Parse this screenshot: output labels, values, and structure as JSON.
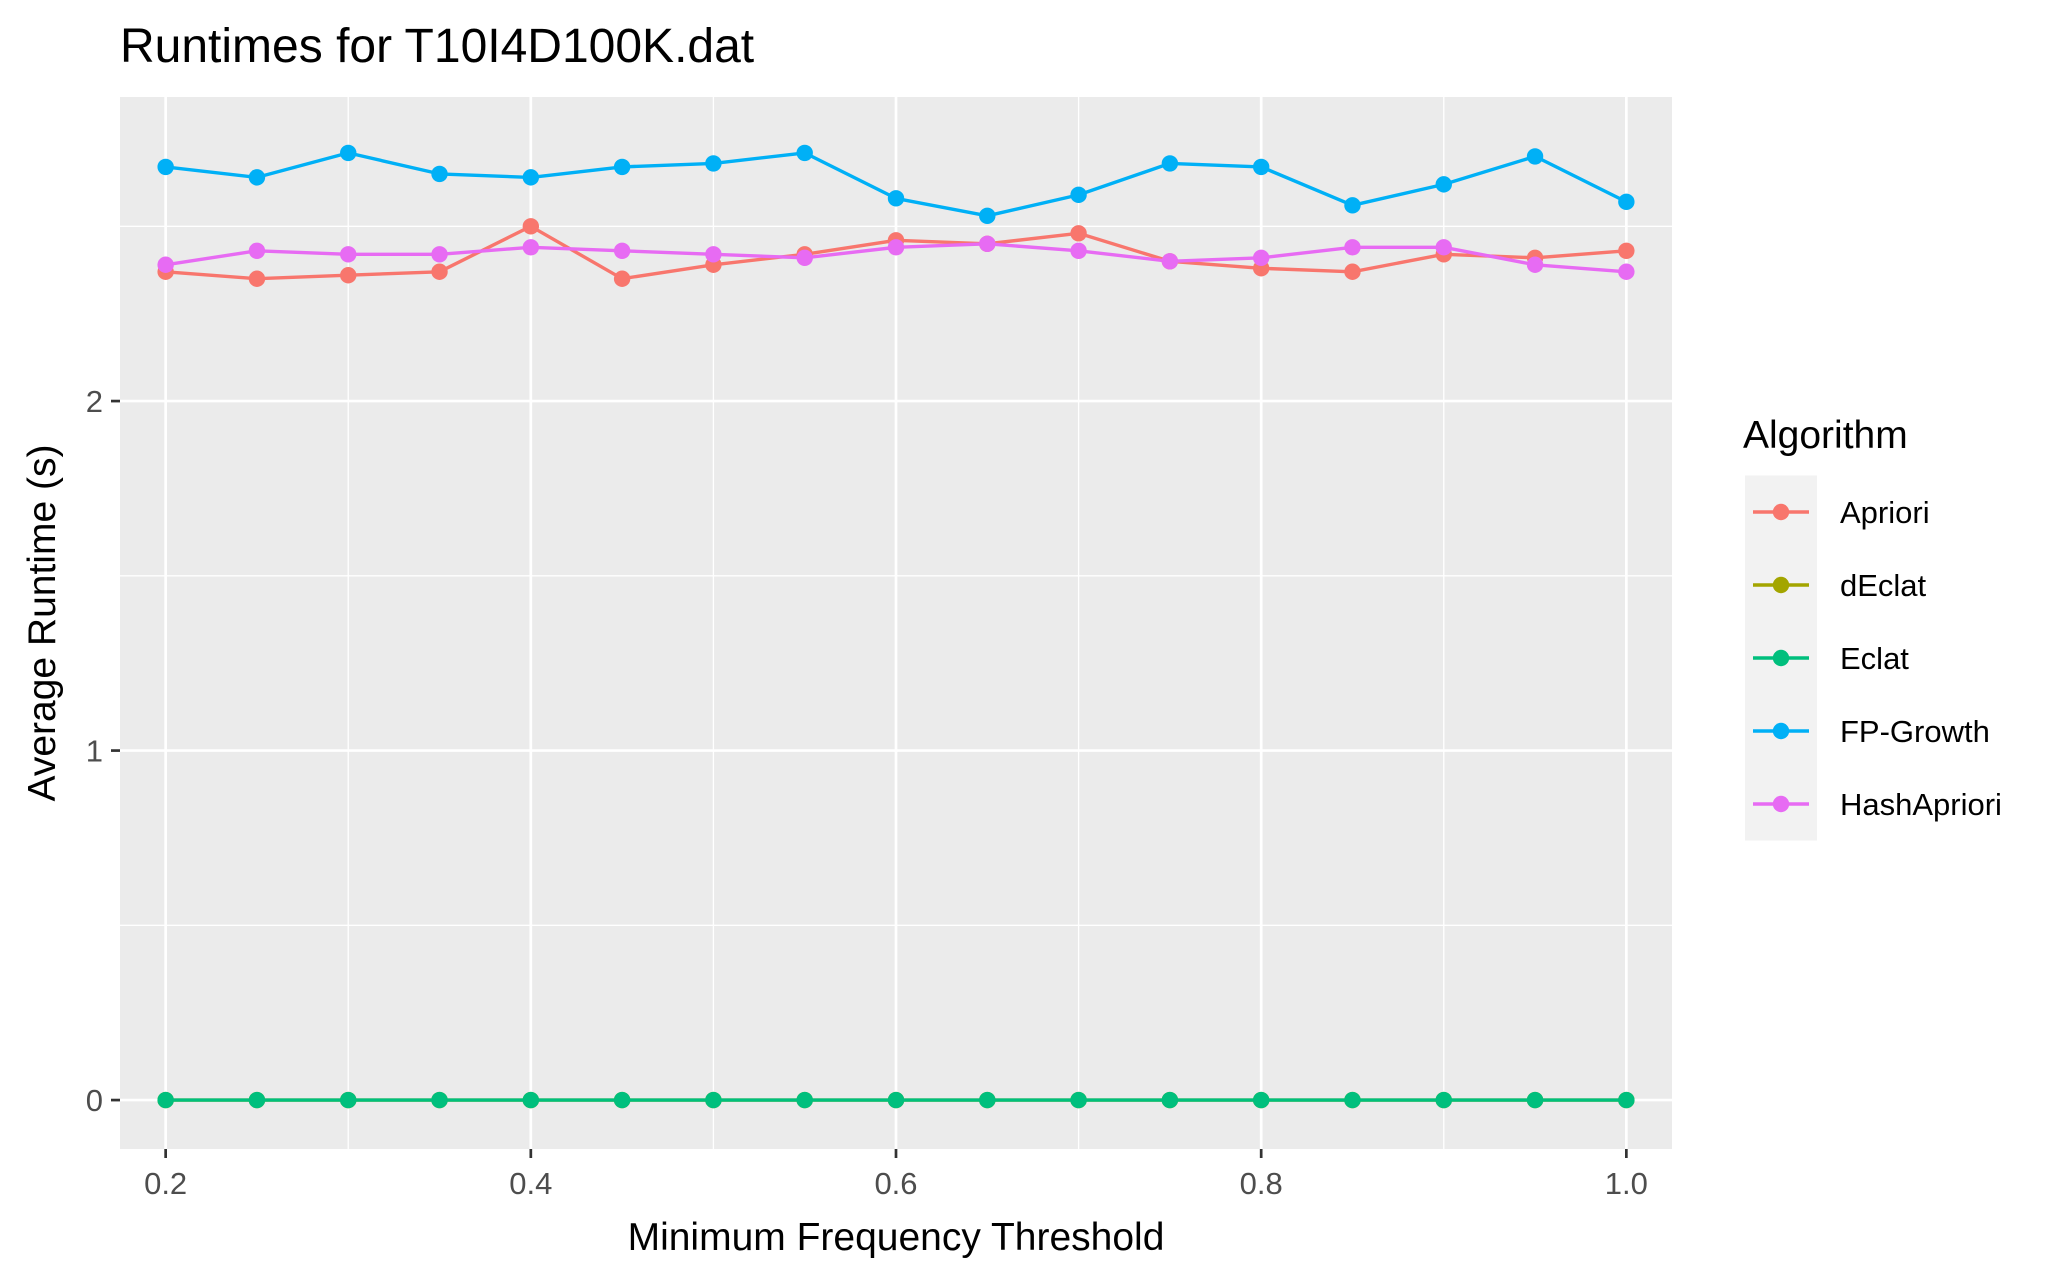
{
  "chart_data": {
    "type": "line",
    "title": "Runtimes for T10I4D100K.dat",
    "xlabel": "Minimum Frequency Threshold",
    "ylabel": "Average Runtime (s)",
    "xlim": [
      0.175,
      1.025
    ],
    "ylim": [
      -0.14,
      2.87
    ],
    "x_ticks": [
      0.2,
      0.4,
      0.6,
      0.8,
      1.0
    ],
    "x_tick_labels": [
      "0.2",
      "0.4",
      "0.6",
      "0.8",
      "1.0"
    ],
    "y_ticks": [
      0,
      1,
      2
    ],
    "y_tick_labels": [
      "0",
      "1",
      "2"
    ],
    "grid": true,
    "legend": {
      "title": "Algorithm",
      "position": "right"
    },
    "x": [
      0.2,
      0.25,
      0.3,
      0.35,
      0.4,
      0.45,
      0.5,
      0.55,
      0.6,
      0.65,
      0.7,
      0.75,
      0.8,
      0.85,
      0.9,
      0.95,
      1.0
    ],
    "series": [
      {
        "name": "Apriori",
        "color": "#F8766D",
        "values": [
          2.37,
          2.35,
          2.36,
          2.37,
          2.5,
          2.35,
          2.39,
          2.42,
          2.46,
          2.45,
          2.48,
          2.4,
          2.38,
          2.37,
          2.42,
          2.41,
          2.43
        ]
      },
      {
        "name": "dEclat",
        "color": "#A3A500",
        "values": [
          0,
          0,
          0,
          0,
          0,
          0,
          0,
          0,
          0,
          0,
          0,
          0,
          0,
          0,
          0,
          0,
          0
        ]
      },
      {
        "name": "Eclat",
        "color": "#00BF7D",
        "values": [
          0,
          0,
          0,
          0,
          0,
          0,
          0,
          0,
          0,
          0,
          0,
          0,
          0,
          0,
          0,
          0,
          0
        ]
      },
      {
        "name": "FP-Growth",
        "color": "#00B0F6",
        "values": [
          2.67,
          2.64,
          2.71,
          2.65,
          2.64,
          2.67,
          2.68,
          2.71,
          2.58,
          2.53,
          2.59,
          2.68,
          2.67,
          2.56,
          2.62,
          2.7,
          2.57
        ]
      },
      {
        "name": "HashApriori",
        "color": "#E76BF3",
        "values": [
          2.39,
          2.43,
          2.42,
          2.42,
          2.44,
          2.43,
          2.42,
          2.41,
          2.44,
          2.45,
          2.43,
          2.4,
          2.41,
          2.44,
          2.44,
          2.39,
          2.37
        ]
      }
    ]
  }
}
